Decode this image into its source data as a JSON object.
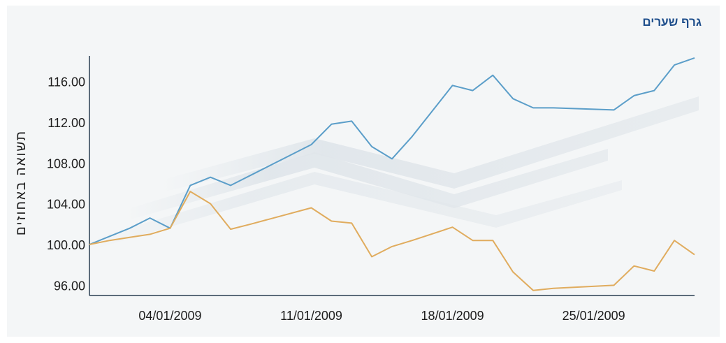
{
  "chart_data": {
    "type": "line",
    "title": "גרף שערים",
    "ylabel": "תשואה באחוזים",
    "xlabel": "",
    "ylim": [
      95,
      118.5
    ],
    "yticks": [
      "96.00",
      "100.00",
      "104.00",
      "108.00",
      "112.00",
      "116.00"
    ],
    "xlim": [
      "2008-12-31",
      "2009-01-30"
    ],
    "xticks": [
      "04/01/2009",
      "11/01/2009",
      "18/01/2009",
      "25/01/2009"
    ],
    "grid": false,
    "series": [
      {
        "color": "#5b9ec9",
        "x": [
          "2008-12-31",
          "2009-01-01",
          "2009-01-02",
          "2009-01-03",
          "2009-01-04",
          "2009-01-05",
          "2009-01-06",
          "2009-01-07",
          "2009-01-08",
          "2009-01-11",
          "2009-01-12",
          "2009-01-13",
          "2009-01-14",
          "2009-01-15",
          "2009-01-16",
          "2009-01-18",
          "2009-01-19",
          "2009-01-20",
          "2009-01-21",
          "2009-01-22",
          "2009-01-23",
          "2009-01-26",
          "2009-01-27",
          "2009-01-28",
          "2009-01-29",
          "2009-01-30"
        ],
        "values": [
          100.0,
          100.8,
          101.6,
          102.6,
          101.6,
          105.8,
          106.6,
          105.8,
          106.8,
          109.8,
          111.8,
          112.1,
          109.6,
          108.4,
          110.6,
          115.6,
          115.1,
          116.6,
          114.3,
          113.4,
          113.4,
          113.2,
          114.6,
          115.1,
          117.6,
          118.3
        ]
      },
      {
        "color": "#e0ac5e",
        "x": [
          "2008-12-31",
          "2009-01-01",
          "2009-01-02",
          "2009-01-03",
          "2009-01-04",
          "2009-01-05",
          "2009-01-06",
          "2009-01-07",
          "2009-01-08",
          "2009-01-11",
          "2009-01-12",
          "2009-01-13",
          "2009-01-14",
          "2009-01-15",
          "2009-01-16",
          "2009-01-18",
          "2009-01-19",
          "2009-01-20",
          "2009-01-21",
          "2009-01-22",
          "2009-01-23",
          "2009-01-26",
          "2009-01-27",
          "2009-01-28",
          "2009-01-29",
          "2009-01-30"
        ],
        "values": [
          100.0,
          100.4,
          100.7,
          101.0,
          101.6,
          105.2,
          104.0,
          101.5,
          102.0,
          103.6,
          102.3,
          102.1,
          98.8,
          99.8,
          100.4,
          101.7,
          100.4,
          100.4,
          97.3,
          95.5,
          95.7,
          96.0,
          97.9,
          97.4,
          100.4,
          99.0
        ]
      }
    ]
  }
}
